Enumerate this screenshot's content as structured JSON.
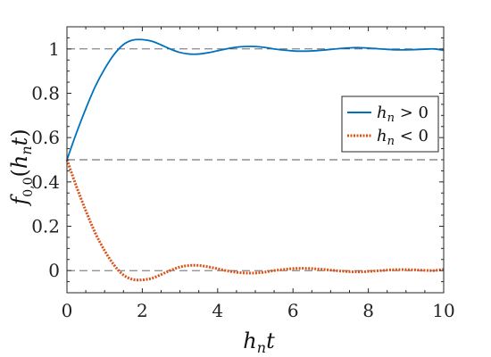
{
  "chart_data": {
    "type": "line",
    "xlabel": "h_n t",
    "ylabel": "f_{0,0}(h_n t)",
    "xlim": [
      0,
      10
    ],
    "ylim": [
      -0.1,
      1.1
    ],
    "x_ticks": [
      0,
      2,
      4,
      6,
      8,
      10
    ],
    "x_tick_labels": [
      "0",
      "2",
      "4",
      "6",
      "8",
      "10"
    ],
    "y_ticks": [
      0,
      0.2,
      0.4,
      0.6,
      0.8,
      1
    ],
    "y_tick_labels": [
      "0",
      "0.2",
      "0.4",
      "0.6",
      "0.8",
      "1"
    ],
    "grid": false,
    "reference_lines": [
      0,
      0.5,
      1
    ],
    "legend_position": "right",
    "series": [
      {
        "name": "h_n > 0",
        "legend_label": "hₙ > 0",
        "color": "#0072BD",
        "style": "solid",
        "x": [
          0,
          0.25,
          0.5,
          0.75,
          1.0,
          1.25,
          1.5,
          1.75,
          2.0,
          2.25,
          2.5,
          2.75,
          3.0,
          3.25,
          3.5,
          3.75,
          4.0,
          4.25,
          4.5,
          4.75,
          5.0,
          5.25,
          5.5,
          5.75,
          6.0,
          6.25,
          6.5,
          6.75,
          7.0,
          7.25,
          7.5,
          7.75,
          8.0,
          8.25,
          8.5,
          8.75,
          9.0,
          9.25,
          9.5,
          9.75,
          10.0
        ],
        "y": [
          0.5,
          0.62,
          0.73,
          0.83,
          0.91,
          0.975,
          1.02,
          1.04,
          1.042,
          1.035,
          1.018,
          0.999,
          0.984,
          0.977,
          0.977,
          0.983,
          0.992,
          1.001,
          1.008,
          1.011,
          1.011,
          1.007,
          1.0,
          0.995,
          0.991,
          0.99,
          0.991,
          0.994,
          0.998,
          1.002,
          1.005,
          1.006,
          1.004,
          1.001,
          0.998,
          0.996,
          0.996,
          0.997,
          0.999,
          1.0,
          0.994
        ]
      },
      {
        "name": "h_n < 0",
        "legend_label": "hₙ < 0",
        "color": "#D95319",
        "style": "dotted",
        "x": [
          0,
          0.25,
          0.5,
          0.75,
          1.0,
          1.25,
          1.5,
          1.75,
          2.0,
          2.25,
          2.5,
          2.75,
          3.0,
          3.25,
          3.5,
          3.75,
          4.0,
          4.25,
          4.5,
          4.75,
          5.0,
          5.25,
          5.5,
          5.75,
          6.0,
          6.25,
          6.5,
          6.75,
          7.0,
          7.25,
          7.5,
          7.75,
          8.0,
          8.25,
          8.5,
          8.75,
          9.0,
          9.25,
          9.5,
          9.75,
          10.0
        ],
        "y": [
          0.5,
          0.38,
          0.27,
          0.17,
          0.09,
          0.025,
          -0.02,
          -0.04,
          -0.042,
          -0.035,
          -0.018,
          0.001,
          0.016,
          0.023,
          0.023,
          0.017,
          0.008,
          -0.001,
          -0.008,
          -0.011,
          -0.011,
          -0.007,
          0.0,
          0.005,
          0.009,
          0.01,
          0.009,
          0.006,
          0.002,
          -0.002,
          -0.005,
          -0.006,
          -0.004,
          -0.001,
          0.002,
          0.004,
          0.004,
          0.003,
          0.001,
          0.0,
          0.006
        ]
      }
    ]
  }
}
